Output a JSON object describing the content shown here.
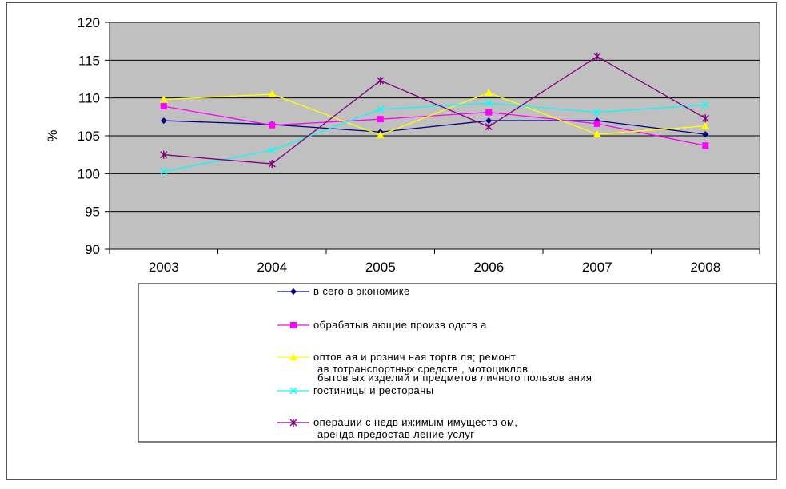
{
  "chart_data": {
    "type": "line",
    "ylabel": "%",
    "ylim": [
      90,
      120
    ],
    "y_ticks": [
      "90",
      "95",
      "100",
      "105",
      "110",
      "115",
      "120"
    ],
    "categories": [
      "2003",
      "2004",
      "2005",
      "2006",
      "2007",
      "2008"
    ],
    "grid": true,
    "legend_position": "bottom",
    "series": [
      {
        "name": "всего в экономике",
        "label_lines": [
          "в сего в экономике"
        ],
        "color": "#000080",
        "marker": "diamond",
        "values": [
          107.0,
          106.5,
          105.5,
          107.0,
          107.0,
          105.2
        ]
      },
      {
        "name": "обрабатывающие производства",
        "label_lines": [
          "обрабатыв ающие произв одств а"
        ],
        "color": "#ff00ff",
        "marker": "square",
        "values": [
          108.9,
          106.4,
          107.2,
          108.1,
          106.6,
          103.7
        ]
      },
      {
        "name": "оптовая и розничная торговля; ремонт автотранспортных средств, мотоциклов, бытовых изделий и предметов личного пользования",
        "label_lines": [
          "оптов ая и рознич ная торгв ля; ремонт",
          "ав тотранспортных средств , мотоциклов ,",
          "бытов ых изделий и предметов личного пользов ания"
        ],
        "color": "#ffff00",
        "marker": "triangle",
        "values": [
          109.8,
          110.5,
          105.1,
          110.7,
          105.2,
          106.3
        ]
      },
      {
        "name": "гостиницы и рестораны",
        "label_lines": [
          "гостиницы и рестораны"
        ],
        "color": "#00ffff",
        "marker": "x",
        "values": [
          100.3,
          103.1,
          108.5,
          109.3,
          108.1,
          109.1
        ]
      },
      {
        "name": "операции с недвижимым имуществом, аренда предоставление услуг",
        "label_lines": [
          "операции с недв ижимым имуществ ом,",
          "аренда предостав ление услуг"
        ],
        "color": "#800080",
        "marker": "star",
        "values": [
          102.5,
          101.3,
          112.3,
          106.2,
          115.5,
          107.3
        ]
      }
    ]
  }
}
